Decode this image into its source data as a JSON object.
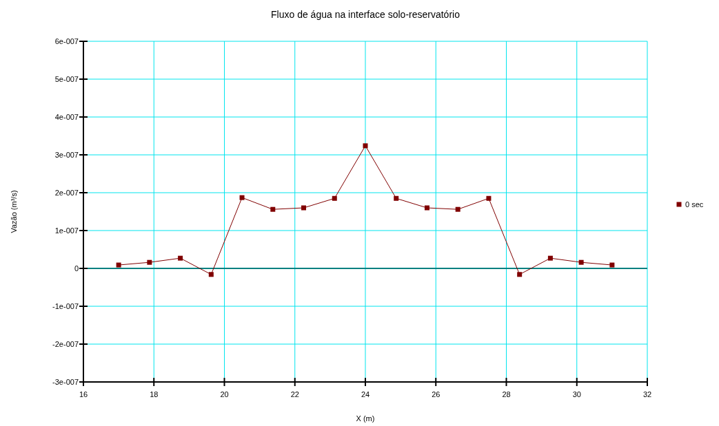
{
  "chart_data": {
    "type": "line",
    "title": "Fluxo de água na interface solo-reservatório",
    "xlabel": "X (m)",
    "ylabel": "Vazão (m³/s)",
    "x": [
      17,
      17.875,
      18.75,
      19.625,
      20.5,
      21.375,
      22.25,
      23.125,
      24,
      24.875,
      25.75,
      26.625,
      27.5,
      28.375,
      29.25,
      30.125,
      31
    ],
    "series": [
      {
        "name": "0 sec",
        "color": "#800000",
        "values": [
          9e-09,
          1.6e-08,
          2.7e-08,
          -1.6e-08,
          1.87e-07,
          1.56e-07,
          1.6e-07,
          1.85e-07,
          3.24e-07,
          1.85e-07,
          1.6e-07,
          1.56e-07,
          1.85e-07,
          -1.6e-08,
          2.7e-08,
          1.6e-08,
          9e-09
        ]
      }
    ],
    "xlim": [
      16,
      32
    ],
    "xticks": [
      16,
      18,
      20,
      22,
      24,
      26,
      28,
      30,
      32
    ],
    "ylim": [
      -3e-07,
      6e-07
    ],
    "yticks": [
      {
        "value": -3e-07,
        "label": "-3e-007"
      },
      {
        "value": -2e-07,
        "label": "-2e-007"
      },
      {
        "value": -1e-07,
        "label": "-1e-007"
      },
      0,
      {
        "value": 1e-07,
        "label": "1e-007"
      },
      {
        "value": 2e-07,
        "label": "2e-007"
      },
      {
        "value": 3e-07,
        "label": "3e-007"
      },
      {
        "value": 4e-07,
        "label": "4e-007"
      },
      {
        "value": 5e-07,
        "label": "5e-007"
      },
      {
        "value": 6e-07,
        "label": "6e-007"
      }
    ],
    "ref_lines": [
      {
        "axis": "y",
        "value": 0,
        "color": "#008080"
      }
    ],
    "grid": true,
    "legend": "right",
    "marker": "square",
    "line_style": "solid"
  }
}
